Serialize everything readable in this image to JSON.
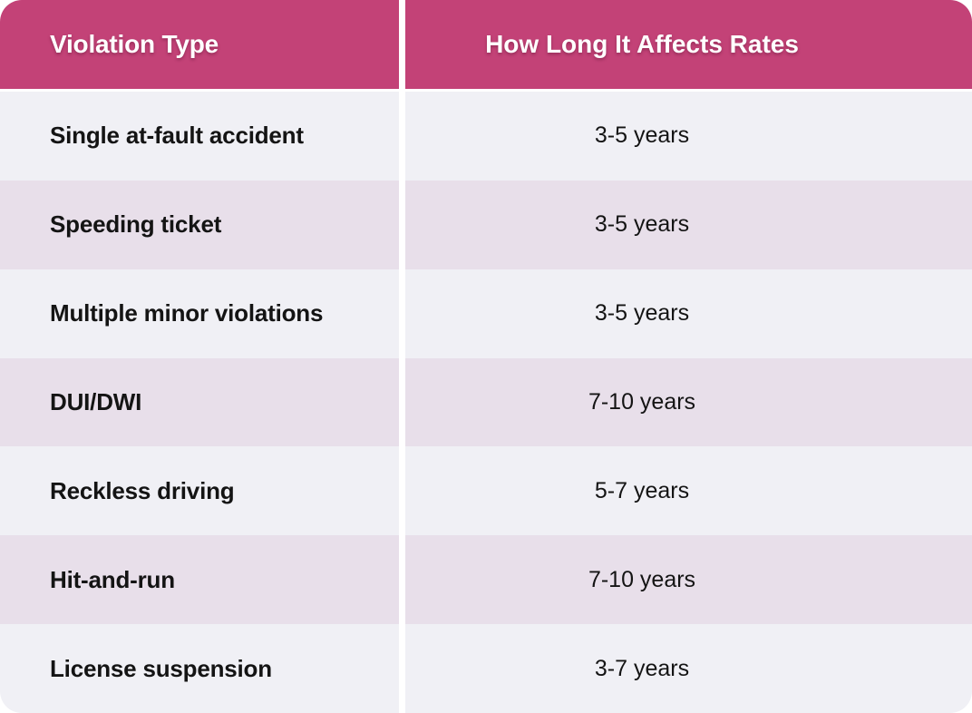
{
  "chart_data": {
    "type": "table",
    "title": "",
    "columns": [
      "Violation Type",
      "How Long It Affects Rates"
    ],
    "rows": [
      [
        "Single at-fault accident",
        "3-5 years"
      ],
      [
        "Speeding ticket",
        "3-5 years"
      ],
      [
        "Multiple minor violations",
        "3-5 years"
      ],
      [
        "DUI/DWI",
        "7-10 years"
      ],
      [
        "Reckless driving",
        "5-7 years"
      ],
      [
        "Hit-and-run",
        "7-10 years"
      ],
      [
        "License suspension",
        "3-7 years"
      ]
    ],
    "layout": {
      "header_position": "top",
      "row_striping": "alternating",
      "first_body_row_shade": "gray",
      "corner_radius_px": 24
    }
  },
  "colors": {
    "header_bg": "#C34277",
    "header_text": "#FFFFFF",
    "row_gray": "#F0F0F5",
    "row_pink": "#E8DFEA",
    "divider": "#FFFFFF",
    "body_text": "#141414"
  }
}
